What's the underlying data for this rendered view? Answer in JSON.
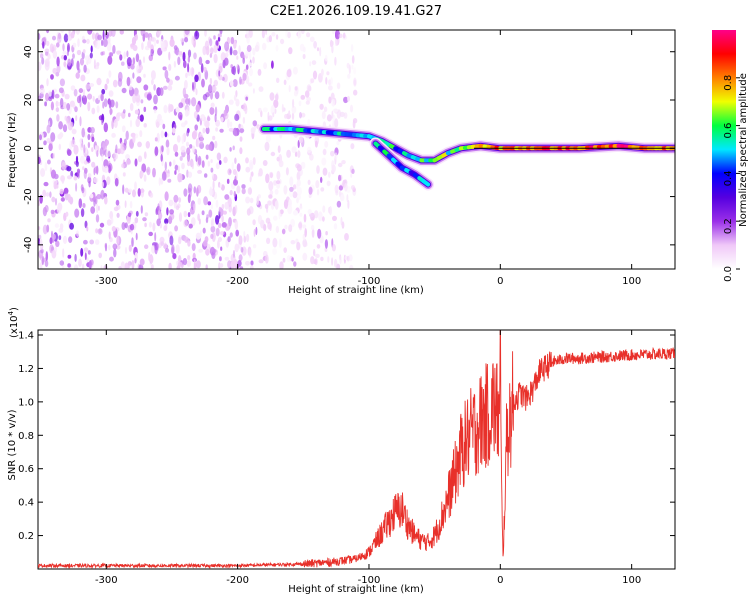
{
  "title": "C2E1.2026.109.19.41.G27",
  "chart_data": [
    {
      "type": "heatmap",
      "xlabel": "Height of straight line (km)",
      "ylabel": "Frequency (Hz)",
      "xlim": [
        -352,
        133
      ],
      "ylim": [
        -50,
        49
      ],
      "xticks": [
        -300,
        -200,
        -100,
        0,
        100
      ],
      "yticks": [
        -40,
        -20,
        0,
        20,
        40
      ],
      "xtick_labels": [
        "-300",
        "-200",
        "-100",
        "0",
        "100"
      ],
      "ytick_labels": [
        "-40",
        "-20",
        "0",
        "20",
        "40"
      ],
      "colorbar": {
        "label": "Normalized spectral amplitude",
        "range": [
          0,
          1
        ],
        "ticks": [
          0.0,
          0.2,
          0.4,
          0.6,
          0.8
        ],
        "tick_labels": [
          "0.0",
          "0.2",
          "0.4",
          "0.6",
          "0.8"
        ],
        "colormap": [
          "#ffffff",
          "#f0c8f8",
          "#9a30e8",
          "#5500e0",
          "#0000ff",
          "#00e8ff",
          "#00ff40",
          "#f0ff00",
          "#ff8000",
          "#ff0000",
          "#ff0088"
        ]
      },
      "noise_region": {
        "x_start": -352,
        "x_end": -110,
        "dense_end": -195,
        "amplitude": 0.15
      },
      "ridge": [
        {
          "x": -180,
          "f": 8,
          "amp": 0.45
        },
        {
          "x": -160,
          "f": 8,
          "amp": 0.5
        },
        {
          "x": -140,
          "f": 7,
          "amp": 0.45
        },
        {
          "x": -120,
          "f": 6,
          "amp": 0.45
        },
        {
          "x": -100,
          "f": 5,
          "amp": 0.5
        },
        {
          "x": -90,
          "f": 3,
          "amp": 0.55
        },
        {
          "x": -80,
          "f": 0,
          "amp": 0.5
        },
        {
          "x": -70,
          "f": -3,
          "amp": 0.5
        },
        {
          "x": -60,
          "f": -5,
          "amp": 0.55
        },
        {
          "x": -50,
          "f": -5,
          "amp": 0.6
        },
        {
          "x": -40,
          "f": -2,
          "amp": 0.6
        },
        {
          "x": -30,
          "f": 0,
          "amp": 0.65
        },
        {
          "x": -15,
          "f": 1,
          "amp": 0.7
        },
        {
          "x": 0,
          "f": 0,
          "amp": 0.8
        },
        {
          "x": 30,
          "f": 0,
          "amp": 0.82
        },
        {
          "x": 60,
          "f": 0,
          "amp": 0.85
        },
        {
          "x": 90,
          "f": 1,
          "amp": 0.9
        },
        {
          "x": 110,
          "f": 0,
          "amp": 0.85
        },
        {
          "x": 133,
          "f": 0,
          "amp": 0.8
        }
      ],
      "branch": [
        {
          "x": -95,
          "f": 2,
          "amp": 0.5
        },
        {
          "x": -85,
          "f": -3,
          "amp": 0.5
        },
        {
          "x": -75,
          "f": -8,
          "amp": 0.45
        },
        {
          "x": -65,
          "f": -11,
          "amp": 0.45
        },
        {
          "x": -55,
          "f": -15,
          "amp": 0.4
        }
      ],
      "model_line": {
        "x_start": -20,
        "x_end": 133,
        "f": 0
      }
    },
    {
      "type": "line",
      "xlabel": "Height of straight line (km)",
      "ylabel": "SNR (10 * v/v)",
      "y_scale_label": "(x10",
      "y_scale_exponent": "4",
      "xlim": [
        -352,
        133
      ],
      "ylim": [
        0,
        1.43
      ],
      "xticks": [
        -300,
        -200,
        -100,
        0,
        100
      ],
      "yticks": [
        0.2,
        0.4,
        0.6,
        0.8,
        1.0,
        1.2,
        1.4
      ],
      "xtick_labels": [
        "-300",
        "-200",
        "-100",
        "0",
        "100"
      ],
      "ytick_labels": [
        "0.2",
        "0.4",
        "0.6",
        "0.8",
        "1.0",
        "1.2",
        "1.4"
      ],
      "color": "#e8302a",
      "series": [
        {
          "name": "SNR",
          "x": [
            -352,
            -300,
            -250,
            -200,
            -150,
            -130,
            -110,
            -100,
            -95,
            -90,
            -85,
            -80,
            -75,
            -70,
            -65,
            -60,
            -55,
            -50,
            -45,
            -40,
            -35,
            -30,
            -25,
            -20,
            -15,
            -10,
            -5,
            0,
            2,
            5,
            10,
            15,
            20,
            25,
            30,
            40,
            50,
            60,
            80,
            100,
            133
          ],
          "values": [
            0.02,
            0.02,
            0.02,
            0.02,
            0.03,
            0.04,
            0.06,
            0.1,
            0.16,
            0.22,
            0.28,
            0.34,
            0.36,
            0.26,
            0.2,
            0.17,
            0.16,
            0.2,
            0.3,
            0.42,
            0.55,
            0.7,
            0.78,
            0.83,
            0.88,
            0.92,
            0.98,
            0.9,
            0.05,
            0.8,
            1.0,
            1.05,
            1.02,
            1.08,
            1.18,
            1.24,
            1.26,
            1.26,
            1.27,
            1.28,
            1.29
          ]
        }
      ],
      "spike": {
        "x": 0,
        "value": 1.45
      }
    }
  ]
}
